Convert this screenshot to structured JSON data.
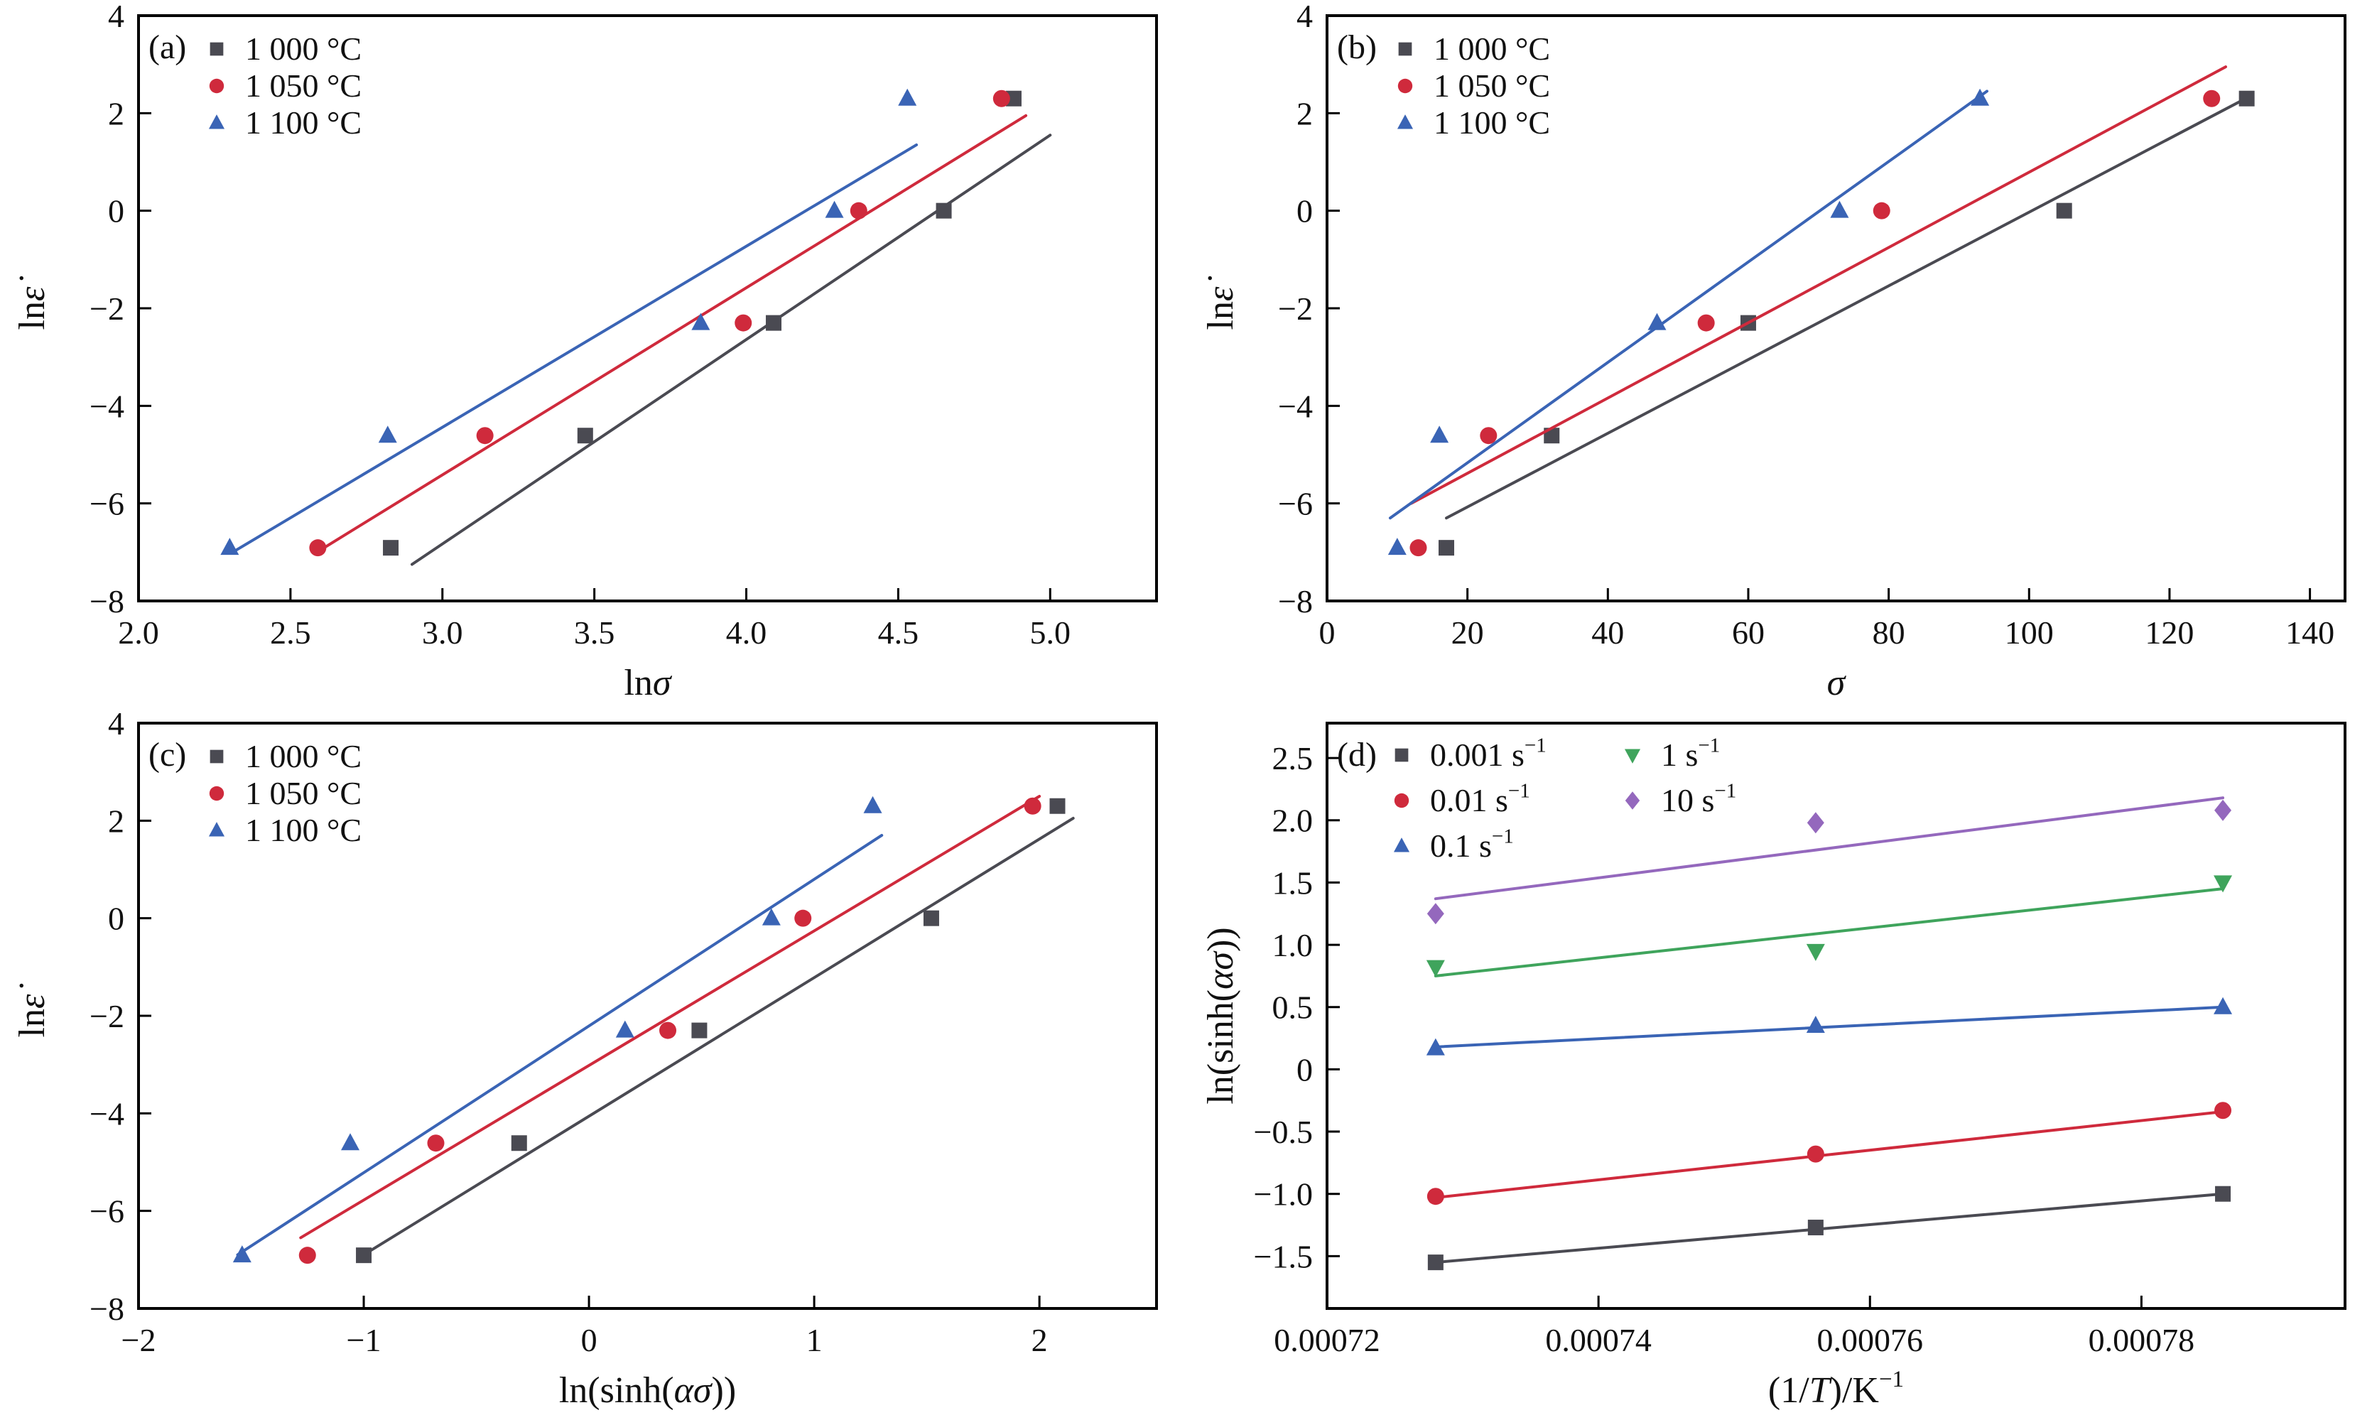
{
  "style": {
    "colors": {
      "gray": "#4a4a52",
      "red": "#cf2a3c",
      "blue": "#3a64b5",
      "green": "#3fa45c",
      "purple": "#9468bd"
    },
    "axis_color": "#000000",
    "text_color": "#111111"
  },
  "chart_data": [
    {
      "type": "scatter",
      "panel_label": "(a)",
      "xlabel": [
        {
          "t": "ln"
        },
        {
          "t": "σ",
          "i": true
        }
      ],
      "ylabel": [
        {
          "t": "ln"
        },
        {
          "t": "ε̇",
          "i": true
        }
      ],
      "xlim": [
        2.0,
        5.35
      ],
      "ylim": [
        -8,
        4
      ],
      "xticks": [
        {
          "v": 2.0,
          "l": "2.0"
        },
        {
          "v": 2.5,
          "l": "2.5"
        },
        {
          "v": 3.0,
          "l": "3.0"
        },
        {
          "v": 3.5,
          "l": "3.5"
        },
        {
          "v": 4.0,
          "l": "4.0"
        },
        {
          "v": 4.5,
          "l": "4.5"
        },
        {
          "v": 5.0,
          "l": "5.0"
        }
      ],
      "yticks": [
        {
          "v": 4,
          "l": "4"
        },
        {
          "v": 2,
          "l": "2"
        },
        {
          "v": 0,
          "l": "0"
        },
        {
          "v": -2,
          "l": "−2"
        },
        {
          "v": -4,
          "l": "−4"
        },
        {
          "v": -6,
          "l": "−6"
        },
        {
          "v": -8,
          "l": "−8"
        }
      ],
      "legend_columns": 1,
      "series": [
        {
          "label": [
            {
              "t": "1 000 °C"
            }
          ],
          "marker": "square",
          "color": "gray",
          "points": [
            [
              2.83,
              -6.91
            ],
            [
              3.47,
              -4.61
            ],
            [
              4.09,
              -2.3
            ],
            [
              4.65,
              0.0
            ],
            [
              4.88,
              2.3
            ]
          ],
          "fit_line": [
            [
              2.9,
              -7.25
            ],
            [
              5.0,
              1.55
            ]
          ]
        },
        {
          "label": [
            {
              "t": "1 050 °C"
            }
          ],
          "marker": "circle",
          "color": "red",
          "points": [
            [
              2.59,
              -6.91
            ],
            [
              3.14,
              -4.61
            ],
            [
              3.99,
              -2.3
            ],
            [
              4.37,
              0.0
            ],
            [
              4.84,
              2.3
            ]
          ],
          "fit_line": [
            [
              2.6,
              -6.95
            ],
            [
              4.92,
              1.95
            ]
          ]
        },
        {
          "label": [
            {
              "t": "1 100 °C"
            }
          ],
          "marker": "triangle-up",
          "color": "blue",
          "points": [
            [
              2.3,
              -6.91
            ],
            [
              2.82,
              -4.61
            ],
            [
              3.85,
              -2.3
            ],
            [
              4.29,
              0.0
            ],
            [
              4.53,
              2.3
            ]
          ],
          "fit_line": [
            [
              2.31,
              -7.0
            ],
            [
              4.56,
              1.35
            ]
          ]
        }
      ]
    },
    {
      "type": "scatter",
      "panel_label": "(b)",
      "xlabel": [
        {
          "t": "σ",
          "i": true
        }
      ],
      "ylabel": [
        {
          "t": "ln"
        },
        {
          "t": "ε̇",
          "i": true
        }
      ],
      "xlim": [
        0,
        145
      ],
      "ylim": [
        -8,
        4
      ],
      "xticks": [
        {
          "v": 0,
          "l": "0"
        },
        {
          "v": 20,
          "l": "20"
        },
        {
          "v": 40,
          "l": "40"
        },
        {
          "v": 60,
          "l": "60"
        },
        {
          "v": 80,
          "l": "80"
        },
        {
          "v": 100,
          "l": "100"
        },
        {
          "v": 120,
          "l": "120"
        },
        {
          "v": 140,
          "l": "140"
        }
      ],
      "yticks": [
        {
          "v": 4,
          "l": "4"
        },
        {
          "v": 2,
          "l": "2"
        },
        {
          "v": 0,
          "l": "0"
        },
        {
          "v": -2,
          "l": "−2"
        },
        {
          "v": -4,
          "l": "−4"
        },
        {
          "v": -6,
          "l": "−6"
        },
        {
          "v": -8,
          "l": "−8"
        }
      ],
      "legend_columns": 1,
      "series": [
        {
          "label": [
            {
              "t": "1 000 °C"
            }
          ],
          "marker": "square",
          "color": "gray",
          "points": [
            [
              17,
              -6.91
            ],
            [
              32,
              -4.61
            ],
            [
              60,
              -2.3
            ],
            [
              105,
              0.0
            ],
            [
              131,
              2.3
            ]
          ],
          "fit_line": [
            [
              17,
              -6.3
            ],
            [
              131.5,
              2.35
            ]
          ]
        },
        {
          "label": [
            {
              "t": "1 050 °C"
            }
          ],
          "marker": "circle",
          "color": "red",
          "points": [
            [
              13,
              -6.91
            ],
            [
              23,
              -4.61
            ],
            [
              54,
              -2.3
            ],
            [
              79,
              0.0
            ],
            [
              126,
              2.3
            ]
          ],
          "fit_line": [
            [
              12,
              -6.0
            ],
            [
              128,
              2.95
            ]
          ]
        },
        {
          "label": [
            {
              "t": "1 100 °C"
            }
          ],
          "marker": "triangle-up",
          "color": "blue",
          "points": [
            [
              10,
              -6.91
            ],
            [
              16,
              -4.61
            ],
            [
              47,
              -2.3
            ],
            [
              73,
              0.0
            ],
            [
              93,
              2.3
            ]
          ],
          "fit_line": [
            [
              9,
              -6.3
            ],
            [
              94,
              2.45
            ]
          ]
        }
      ]
    },
    {
      "type": "scatter",
      "panel_label": "(c)",
      "xlabel": [
        {
          "t": "ln(sinh("
        },
        {
          "t": "ασ",
          "i": true
        },
        {
          "t": "))"
        }
      ],
      "ylabel": [
        {
          "t": "ln"
        },
        {
          "t": "ε̇",
          "i": true
        }
      ],
      "xlim": [
        -2,
        2.52
      ],
      "ylim": [
        -8,
        4
      ],
      "xticks": [
        {
          "v": -2,
          "l": "−2"
        },
        {
          "v": -1,
          "l": "−1"
        },
        {
          "v": 0,
          "l": "0"
        },
        {
          "v": 1,
          "l": "1"
        },
        {
          "v": 2,
          "l": "2"
        }
      ],
      "yticks": [
        {
          "v": 4,
          "l": "4"
        },
        {
          "v": 2,
          "l": "2"
        },
        {
          "v": 0,
          "l": "0"
        },
        {
          "v": -2,
          "l": "−2"
        },
        {
          "v": -4,
          "l": "−4"
        },
        {
          "v": -6,
          "l": "−6"
        },
        {
          "v": -8,
          "l": "−8"
        }
      ],
      "legend_columns": 1,
      "series": [
        {
          "label": [
            {
              "t": "1 000 °C"
            }
          ],
          "marker": "square",
          "color": "gray",
          "points": [
            [
              -1.0,
              -6.91
            ],
            [
              -0.31,
              -4.61
            ],
            [
              0.49,
              -2.3
            ],
            [
              1.52,
              0.0
            ],
            [
              2.08,
              2.3
            ]
          ],
          "fit_line": [
            [
              -1.0,
              -6.9
            ],
            [
              2.15,
              2.05
            ]
          ]
        },
        {
          "label": [
            {
              "t": "1 050 °C"
            }
          ],
          "marker": "circle",
          "color": "red",
          "points": [
            [
              -1.25,
              -6.91
            ],
            [
              -0.68,
              -4.61
            ],
            [
              0.35,
              -2.3
            ],
            [
              0.95,
              0.0
            ],
            [
              1.97,
              2.3
            ]
          ],
          "fit_line": [
            [
              -1.28,
              -6.55
            ],
            [
              2.0,
              2.5
            ]
          ]
        },
        {
          "label": [
            {
              "t": "1 100 °C"
            }
          ],
          "marker": "triangle-up",
          "color": "blue",
          "points": [
            [
              -1.54,
              -6.91
            ],
            [
              -1.06,
              -4.61
            ],
            [
              0.16,
              -2.3
            ],
            [
              0.81,
              0.0
            ],
            [
              1.26,
              2.3
            ]
          ],
          "fit_line": [
            [
              -1.56,
              -6.9
            ],
            [
              1.3,
              1.7
            ]
          ]
        }
      ]
    },
    {
      "type": "scatter",
      "panel_label": "(d)",
      "xlabel": [
        {
          "t": "(1/"
        },
        {
          "t": "T",
          "i": true
        },
        {
          "t": ")/K"
        },
        {
          "t": "−1",
          "sup": true
        }
      ],
      "ylabel": [
        {
          "t": "ln(sinh("
        },
        {
          "t": "ασ",
          "i": true
        },
        {
          "t": "))"
        }
      ],
      "xlim": [
        0.00072,
        0.000795
      ],
      "ylim": [
        -1.92,
        2.78
      ],
      "xticks": [
        {
          "v": 0.00072,
          "l": "0.00072"
        },
        {
          "v": 0.00074,
          "l": "0.00074"
        },
        {
          "v": 0.00076,
          "l": "0.00076"
        },
        {
          "v": 0.00078,
          "l": "0.00078"
        }
      ],
      "yticks": [
        {
          "v": 2.5,
          "l": "2.5"
        },
        {
          "v": 2.0,
          "l": "2.0"
        },
        {
          "v": 1.5,
          "l": "1.5"
        },
        {
          "v": 1.0,
          "l": "1.0"
        },
        {
          "v": 0.5,
          "l": "0.5"
        },
        {
          "v": 0,
          "l": "0"
        },
        {
          "v": -0.5,
          "l": "−0.5"
        },
        {
          "v": -1.0,
          "l": "−1.0"
        },
        {
          "v": -1.5,
          "l": "−1.5"
        }
      ],
      "legend_columns": 2,
      "series": [
        {
          "label": [
            {
              "t": "0.001 s"
            },
            {
              "t": "−1",
              "sup": true
            }
          ],
          "marker": "square",
          "color": "gray",
          "points": [
            [
              0.000728,
              -1.55
            ],
            [
              0.000756,
              -1.27
            ],
            [
              0.000786,
              -1.0
            ]
          ],
          "fit_line": [
            [
              0.000728,
              -1.55
            ],
            [
              0.000786,
              -1.0
            ]
          ]
        },
        {
          "label": [
            {
              "t": "0.01 s"
            },
            {
              "t": "−1",
              "sup": true
            }
          ],
          "marker": "circle",
          "color": "red",
          "points": [
            [
              0.000728,
              -1.02
            ],
            [
              0.000756,
              -0.68
            ],
            [
              0.000786,
              -0.33
            ]
          ],
          "fit_line": [
            [
              0.000728,
              -1.03
            ],
            [
              0.000786,
              -0.34
            ]
          ]
        },
        {
          "label": [
            {
              "t": "0.1 s"
            },
            {
              "t": "−1",
              "sup": true
            }
          ],
          "marker": "triangle-up",
          "color": "blue",
          "points": [
            [
              0.000728,
              0.17
            ],
            [
              0.000756,
              0.35
            ],
            [
              0.000786,
              0.5
            ]
          ],
          "fit_line": [
            [
              0.000728,
              0.18
            ],
            [
              0.000786,
              0.5
            ]
          ]
        },
        {
          "label": [
            {
              "t": "1 s"
            },
            {
              "t": "−1",
              "sup": true
            }
          ],
          "marker": "triangle-down",
          "color": "green",
          "points": [
            [
              0.000728,
              0.82
            ],
            [
              0.000756,
              0.95
            ],
            [
              0.000786,
              1.5
            ]
          ],
          "fit_line": [
            [
              0.000728,
              0.75
            ],
            [
              0.000786,
              1.45
            ]
          ]
        },
        {
          "label": [
            {
              "t": "10 s"
            },
            {
              "t": "−1",
              "sup": true
            }
          ],
          "marker": "diamond",
          "color": "purple",
          "points": [
            [
              0.000728,
              1.25
            ],
            [
              0.000756,
              1.98
            ],
            [
              0.000786,
              2.08
            ]
          ],
          "fit_line": [
            [
              0.000728,
              1.37
            ],
            [
              0.000786,
              2.18
            ]
          ]
        }
      ]
    }
  ]
}
